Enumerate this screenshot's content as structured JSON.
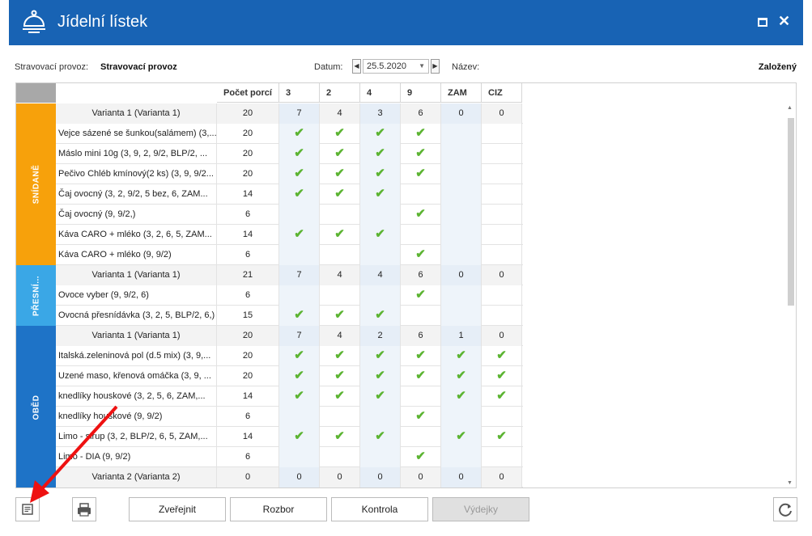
{
  "title": "Jídelní lístek",
  "toolbar": {
    "provoz_label": "Stravovací provoz:",
    "provoz_value": "Stravovací provoz",
    "datum_label": "Datum:",
    "datum_value": "25.5.2020",
    "nazev_label": "Název:",
    "status": "Založený"
  },
  "columns": [
    "Počet porcí",
    "3",
    "2",
    "4",
    "9",
    "ZAM",
    "CIZ"
  ],
  "categories": [
    {
      "label": "SNÍDANĚ",
      "color": "#f7a10b"
    },
    {
      "label": "PŘESNÍ...",
      "color": "#3aa7e6"
    },
    {
      "label": "OBĚD",
      "color": "#1e73c7"
    }
  ],
  "rows": [
    {
      "name": "Varianta 1 (Varianta 1)",
      "porce": "20",
      "vals": [
        "7",
        "4",
        "3",
        "6",
        "0",
        "0"
      ],
      "sub": true
    },
    {
      "name": "Vejce sázené se šunkou(salámem) (3,...",
      "porce": "20",
      "vals": [
        "✔",
        "✔",
        "✔",
        "✔",
        "",
        ""
      ]
    },
    {
      "name": "Máslo  mini 10g (3, 9, 2, 9/2, BLP/2, ...",
      "porce": "20",
      "vals": [
        "✔",
        "✔",
        "✔",
        "✔",
        "",
        ""
      ]
    },
    {
      "name": "Pečivo Chléb kmínový(2 ks) (3, 9, 9/2...",
      "porce": "20",
      "vals": [
        "✔",
        "✔",
        "✔",
        "✔",
        "",
        ""
      ]
    },
    {
      "name": "Čaj ovocný (3, 2, 9/2, 5 bez, 6, ZAM...",
      "porce": "14",
      "vals": [
        "✔",
        "✔",
        "✔",
        "",
        "",
        ""
      ]
    },
    {
      "name": "Čaj ovocný (9, 9/2,)",
      "porce": "6",
      "vals": [
        "",
        "",
        "",
        "✔",
        "",
        ""
      ]
    },
    {
      "name": "Káva CARO + mléko (3, 2, 6, 5, ZAM...",
      "porce": "14",
      "vals": [
        "✔",
        "✔",
        "✔",
        "",
        "",
        ""
      ]
    },
    {
      "name": "Káva CARO + mléko (9, 9/2)",
      "porce": "6",
      "vals": [
        "",
        "",
        "",
        "✔",
        "",
        ""
      ]
    },
    {
      "name": "Varianta 1 (Varianta 1)",
      "porce": "21",
      "vals": [
        "7",
        "4",
        "4",
        "6",
        "0",
        "0"
      ],
      "sub": true
    },
    {
      "name": "Ovoce vyber (9, 9/2, 6)",
      "porce": "6",
      "vals": [
        "",
        "",
        "",
        "✔",
        "",
        ""
      ]
    },
    {
      "name": "Ovocná přesnídávka (3, 2, 5, BLP/2, 6,)",
      "porce": "15",
      "vals": [
        "✔",
        "✔",
        "✔",
        "",
        "",
        ""
      ]
    },
    {
      "name": "Varianta 1 (Varianta 1)",
      "porce": "20",
      "vals": [
        "7",
        "4",
        "2",
        "6",
        "1",
        "0"
      ],
      "sub": true
    },
    {
      "name": "Italská.zeleninová pol (d.5 mix) (3, 9,...",
      "porce": "20",
      "vals": [
        "✔",
        "✔",
        "✔",
        "✔",
        "✔",
        "✔"
      ]
    },
    {
      "name": "Uzené maso, křenová omáčka (3, 9, ...",
      "porce": "20",
      "vals": [
        "✔",
        "✔",
        "✔",
        "✔",
        "✔",
        "✔"
      ]
    },
    {
      "name": "knedlíky houskové (3, 2, 5, 6, ZAM,...",
      "porce": "14",
      "vals": [
        "✔",
        "✔",
        "✔",
        "",
        "✔",
        "✔"
      ]
    },
    {
      "name": "knedlíky houskové (9, 9/2)",
      "porce": "6",
      "vals": [
        "",
        "",
        "",
        "✔",
        "",
        ""
      ]
    },
    {
      "name": "Limo - sirup (3, 2, BLP/2, 6, 5, ZAM,...",
      "porce": "14",
      "vals": [
        "✔",
        "✔",
        "✔",
        "",
        "✔",
        "✔"
      ]
    },
    {
      "name": "Limo - DIA (9, 9/2)",
      "porce": "6",
      "vals": [
        "",
        "",
        "",
        "✔",
        "",
        ""
      ]
    },
    {
      "name": "Varianta 2 (Varianta 2)",
      "porce": "0",
      "vals": [
        "0",
        "0",
        "0",
        "0",
        "0",
        "0"
      ],
      "sub": true
    }
  ],
  "buttons": {
    "zverejnit": "Zveřejnit",
    "rozbor": "Rozbor",
    "kontrola": "Kontrola",
    "vydejky": "Výdejky"
  }
}
